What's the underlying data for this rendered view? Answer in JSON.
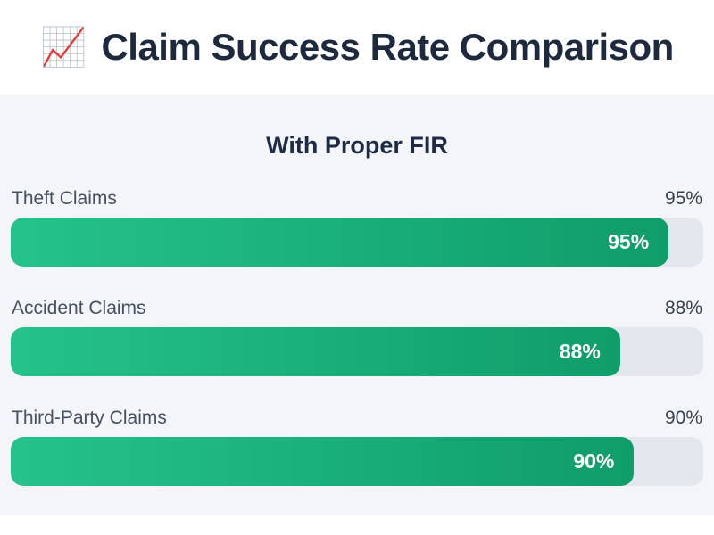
{
  "header": {
    "icon": "📈",
    "icon_name": "chart-increasing-icon",
    "title": "Claim Success Rate Comparison"
  },
  "section": {
    "title": "With Proper FIR"
  },
  "chart_data": {
    "type": "bar",
    "orientation": "horizontal",
    "title": "With Proper FIR",
    "categories": [
      "Theft Claims",
      "Accident Claims",
      "Third-Party Claims"
    ],
    "values": [
      95,
      88,
      90
    ],
    "value_labels": [
      "95%",
      "88%",
      "90%"
    ],
    "xlim": [
      0,
      100
    ],
    "grid": false,
    "legend": false,
    "colors": {
      "bar_gradient_start": "#25c28b",
      "bar_gradient_end": "#0f9d6a",
      "track": "#e3e6ec",
      "inside_label": "#ffffff"
    }
  },
  "rows": [
    {
      "label": "Theft Claims",
      "value": 95,
      "display": "95%"
    },
    {
      "label": "Accident Claims",
      "value": 88,
      "display": "88%"
    },
    {
      "label": "Third-Party Claims",
      "value": 90,
      "display": "90%"
    }
  ],
  "colors": {
    "header_bg": "#ffffff",
    "title_text": "#1d2a3e",
    "card_bg": "#f3f5f9",
    "label_text": "#454f63"
  }
}
